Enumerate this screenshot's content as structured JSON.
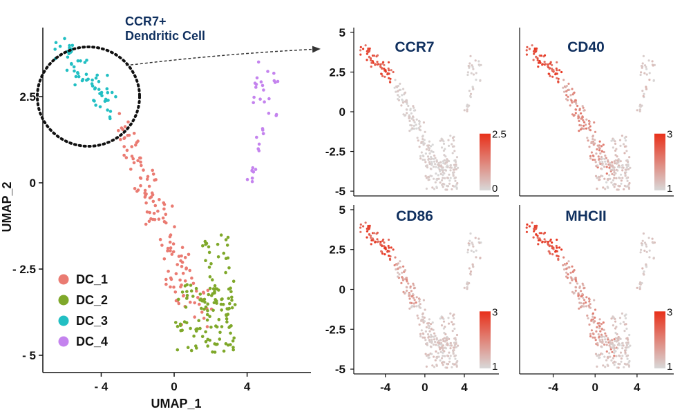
{
  "chart_data": [
    {
      "type": "scatter",
      "id": "main",
      "xlabel": "UMAP_1",
      "ylabel": "UMAP_2",
      "xlim": [
        -7.2,
        7.5
      ],
      "ylim": [
        -5.5,
        4.5
      ],
      "x_ticks": [
        {
          "value": -4,
          "label": "- 4"
        },
        {
          "value": 0,
          "label": "0"
        },
        {
          "value": 4,
          "label": "4"
        }
      ],
      "y_ticks": [
        {
          "value": 2.5,
          "label": "2.5"
        },
        {
          "value": 0,
          "label": "0"
        },
        {
          "value": -2.5,
          "label": "- 2.5"
        },
        {
          "value": -5,
          "label": "- 5"
        }
      ],
      "legend_position": "bottom-left",
      "annotation": {
        "line1": "CCR7+",
        "line2": "Dendritic Cell"
      },
      "series": [
        {
          "name": "DC_1",
          "color": "#EA7B72",
          "region": {
            "x": [
              -3.0,
              1.5
            ],
            "y": [
              -4.5,
              1.7
            ]
          }
        },
        {
          "name": "DC_2",
          "color": "#7FA82A",
          "region": {
            "x": [
              0.0,
              3.6
            ],
            "y": [
              -5.0,
              -1.6
            ]
          }
        },
        {
          "name": "DC_3",
          "color": "#22BFC3",
          "region": {
            "x": [
              -6.6,
              -3.2
            ],
            "y": [
              2.1,
              4.0
            ]
          }
        },
        {
          "name": "DC_4",
          "color": "#C483EE",
          "region": {
            "x": [
              4.0,
              5.8
            ],
            "y": [
              0.0,
              3.5
            ]
          }
        }
      ]
    },
    {
      "type": "scatter",
      "id": "CCR7",
      "title": "CCR7",
      "xlim": [
        -7.2,
        7.5
      ],
      "ylim": [
        -5.3,
        5.3
      ],
      "x_ticks": [],
      "y_ticks": [
        {
          "value": 5,
          "label": "5"
        },
        {
          "value": 2.5,
          "label": "2.5"
        },
        {
          "value": 0,
          "label": "0"
        },
        {
          "value": -2.5,
          "label": "-2.5"
        },
        {
          "value": -5,
          "label": "-5"
        }
      ],
      "colorbar": {
        "max": 2.5,
        "min": 0,
        "max_label": "2.5",
        "min_label": "0",
        "high_color": "#E8301A",
        "low_color": "#D8D8D8"
      }
    },
    {
      "type": "scatter",
      "id": "CD40",
      "title": "CD40",
      "xlim": [
        -7.2,
        7.5
      ],
      "ylim": [
        -5.3,
        5.3
      ],
      "x_ticks": [],
      "y_ticks": [],
      "colorbar": {
        "max": 3,
        "min": 1,
        "max_label": "3",
        "min_label": "1",
        "high_color": "#E8301A",
        "low_color": "#D8D8D8"
      }
    },
    {
      "type": "scatter",
      "id": "CD86",
      "title": "CD86",
      "xlim": [
        -7.2,
        7.5
      ],
      "ylim": [
        -5.3,
        5.3
      ],
      "x_ticks": [
        {
          "value": -4,
          "label": "-4"
        },
        {
          "value": 0,
          "label": "0"
        },
        {
          "value": 4,
          "label": "4"
        }
      ],
      "y_ticks": [
        {
          "value": 5,
          "label": "5"
        },
        {
          "value": 2.5,
          "label": "2.5"
        },
        {
          "value": 0,
          "label": "0"
        },
        {
          "value": -2.5,
          "label": "-2.5"
        },
        {
          "value": -5,
          "label": "-5"
        }
      ],
      "colorbar": {
        "max": 3,
        "min": 1,
        "max_label": "3",
        "min_label": "1",
        "high_color": "#E8301A",
        "low_color": "#D8D8D8"
      }
    },
    {
      "type": "scatter",
      "id": "MHCII",
      "title": "MHCII",
      "xlim": [
        -7.2,
        7.5
      ],
      "ylim": [
        -5.3,
        5.3
      ],
      "x_ticks": [
        {
          "value": -4,
          "label": "-4"
        },
        {
          "value": 0,
          "label": "0"
        },
        {
          "value": 4,
          "label": "4"
        }
      ],
      "y_ticks": [],
      "colorbar": {
        "max": 3,
        "min": 1,
        "max_label": "3",
        "min_label": "1",
        "high_color": "#E8301A",
        "low_color": "#D8D8D8"
      }
    }
  ]
}
